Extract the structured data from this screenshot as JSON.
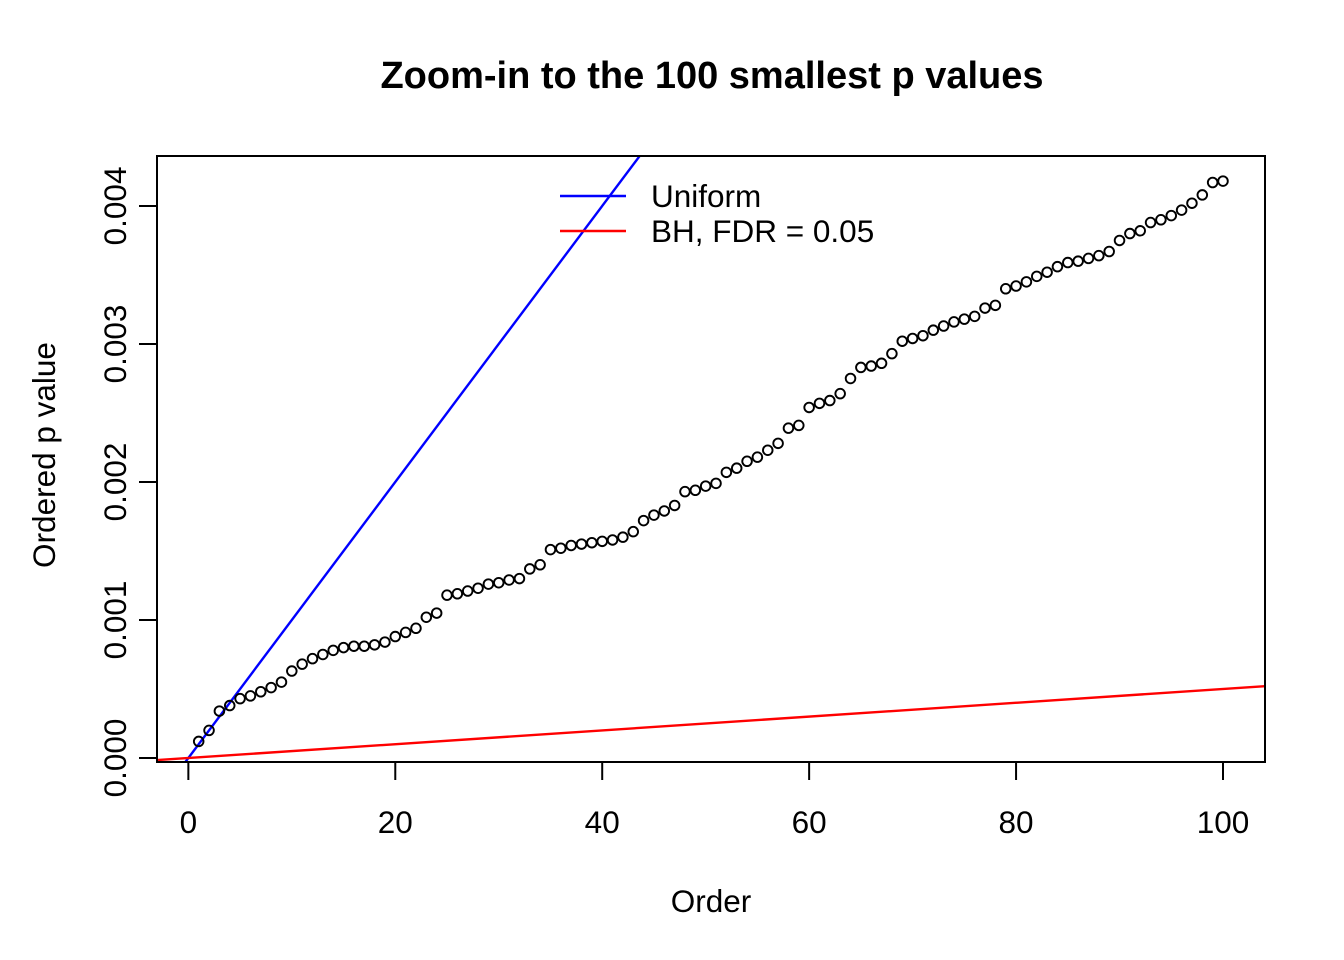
{
  "chart_data": {
    "type": "scatter",
    "title": "Zoom-in to the 100 smallest p values",
    "xlabel": "Order",
    "ylabel": "Ordered p value",
    "xlim": [
      0,
      100
    ],
    "ylim": [
      0,
      0.0042
    ],
    "x_ticks": [
      0,
      20,
      40,
      60,
      80,
      100
    ],
    "x_tick_labels": [
      "0",
      "20",
      "40",
      "60",
      "80",
      "100"
    ],
    "y_ticks": [
      0,
      0.001,
      0.002,
      0.003,
      0.004
    ],
    "y_tick_labels": [
      "0.000",
      "0.001",
      "0.002",
      "0.003",
      "0.004"
    ],
    "grid": false,
    "points": {
      "marker": "open-circle",
      "color": "#000000",
      "note": "order index is 1..100 matching array position",
      "p_values": [
        0.00012,
        0.0002,
        0.00034,
        0.00038,
        0.00043,
        0.00045,
        0.00048,
        0.00051,
        0.00055,
        0.00063,
        0.00068,
        0.00072,
        0.00075,
        0.00078,
        0.0008,
        0.00081,
        0.00081,
        0.00082,
        0.00084,
        0.00088,
        0.00091,
        0.00094,
        0.00102,
        0.00105,
        0.00118,
        0.00119,
        0.00121,
        0.00123,
        0.00126,
        0.00127,
        0.00129,
        0.0013,
        0.00137,
        0.0014,
        0.00151,
        0.00152,
        0.00154,
        0.00155,
        0.00156,
        0.00157,
        0.00158,
        0.0016,
        0.00164,
        0.00172,
        0.00176,
        0.00179,
        0.00183,
        0.00193,
        0.00194,
        0.00197,
        0.00199,
        0.00207,
        0.0021,
        0.00215,
        0.00218,
        0.00223,
        0.00228,
        0.00239,
        0.00241,
        0.00254,
        0.00257,
        0.00259,
        0.00264,
        0.00275,
        0.00283,
        0.00284,
        0.00286,
        0.00293,
        0.00302,
        0.00304,
        0.00306,
        0.0031,
        0.00313,
        0.00316,
        0.00318,
        0.0032,
        0.00326,
        0.00328,
        0.0034,
        0.00342,
        0.00345,
        0.00349,
        0.00352,
        0.00356,
        0.00359,
        0.0036,
        0.00362,
        0.00364,
        0.00367,
        0.00375,
        0.0038,
        0.00382,
        0.00388,
        0.0039,
        0.00393,
        0.00397,
        0.00402,
        0.00408,
        0.00417,
        0.00418
      ]
    },
    "lines": [
      {
        "name": "Uniform",
        "color": "#0000ff",
        "slope_per_order": 0.0001,
        "intercept": 0
      },
      {
        "name": "BH, FDR = 0.05",
        "color": "#ff0000",
        "slope_per_order": 5e-06,
        "intercept": 0,
        "fdr": 0.05
      }
    ],
    "legend": {
      "position": "top-center",
      "entries": [
        {
          "label": "Uniform",
          "color": "#0000ff"
        },
        {
          "label": "BH, FDR = 0.05",
          "color": "#ff0000"
        }
      ]
    }
  }
}
